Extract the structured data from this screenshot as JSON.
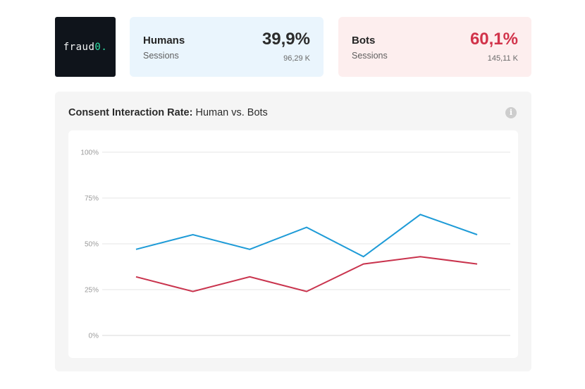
{
  "logo": {
    "text": "fraud",
    "accent": "0."
  },
  "humans": {
    "label": "Humans",
    "sub": "Sessions",
    "pct": "39,9%",
    "count": "96,29 K"
  },
  "bots": {
    "label": "Bots",
    "sub": "Sessions",
    "pct": "60,1%",
    "count": "145,11 K"
  },
  "panel": {
    "title_bold": "Consent Interaction Rate:",
    "title_rest": " Human vs. Bots",
    "info_icon": "info-icon"
  },
  "colors": {
    "humans": "#1e9bd7",
    "bots": "#c9334d"
  },
  "chart_data": {
    "type": "line",
    "title": "Consent Interaction Rate: Human vs. Bots",
    "x": [
      1,
      2,
      3,
      4,
      5,
      6,
      7
    ],
    "ylim": [
      0,
      100
    ],
    "yticks": [
      "0%",
      "25%",
      "50%",
      "75%",
      "100%"
    ],
    "ytick_values": [
      0,
      25,
      50,
      75,
      100
    ],
    "grid": true,
    "series": [
      {
        "key": "humans",
        "values": [
          47,
          55,
          47,
          59,
          43,
          66,
          55
        ]
      },
      {
        "key": "bots",
        "values": [
          32,
          24,
          32,
          24,
          39,
          43,
          39
        ]
      }
    ]
  }
}
